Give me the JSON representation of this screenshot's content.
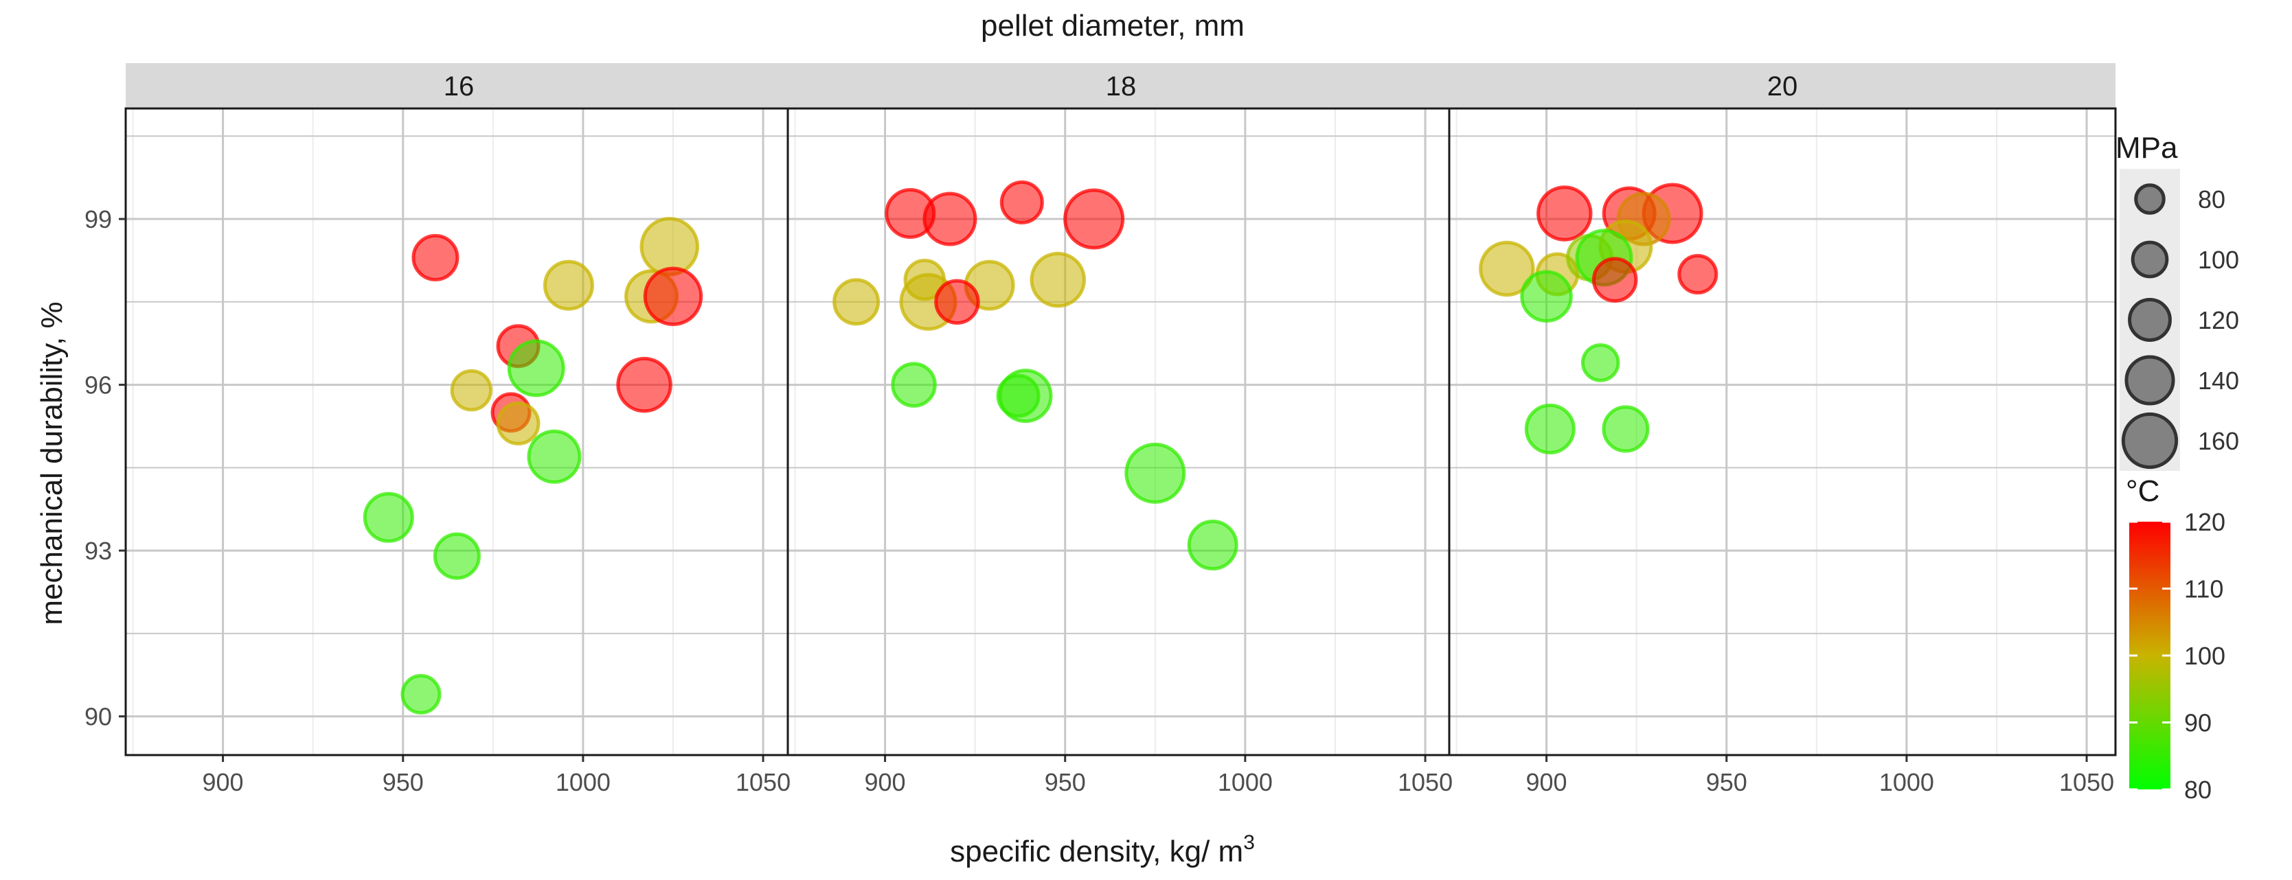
{
  "chart_data": {
    "type": "scatter",
    "facet_title": "pellet diameter, mm",
    "facets": [
      "16",
      "18",
      "20"
    ],
    "xlabel": "specific density, kg/ m",
    "xlabel_sup": "3",
    "ylabel": "mechanical durability, %",
    "xlim": [
      873,
      1058
    ],
    "ylim": [
      89.3,
      101
    ],
    "x_ticks": [
      900,
      950,
      1000,
      1050
    ],
    "y_ticks": [
      90,
      93,
      96,
      99
    ],
    "grid": true,
    "size_legend": {
      "title": "MPa",
      "values": [
        80,
        100,
        120,
        140,
        160
      ],
      "labels": [
        "80",
        "100",
        "120",
        "140",
        "160"
      ]
    },
    "color_legend": {
      "title": "°C",
      "min": 80,
      "max": 120,
      "ticks": [
        80,
        90,
        100,
        110,
        120
      ],
      "labels": [
        "80",
        "90",
        "100",
        "110",
        "120"
      ],
      "color_low": "#00ff00",
      "color_mid": "#c8b400",
      "color_high": "#ff0000"
    },
    "points": {
      "16": [
        {
          "x": 959,
          "y": 98.3,
          "p": 120,
          "t": 120
        },
        {
          "x": 1024,
          "y": 98.5,
          "p": 155,
          "t": 100
        },
        {
          "x": 996,
          "y": 97.8,
          "p": 130,
          "t": 100
        },
        {
          "x": 1019,
          "y": 97.6,
          "p": 140,
          "t": 100
        },
        {
          "x": 1025,
          "y": 97.6,
          "p": 155,
          "t": 120
        },
        {
          "x": 982,
          "y": 96.7,
          "p": 110,
          "t": 120
        },
        {
          "x": 987,
          "y": 96.3,
          "p": 150,
          "t": 85
        },
        {
          "x": 1017,
          "y": 96.0,
          "p": 145,
          "t": 120
        },
        {
          "x": 969,
          "y": 95.9,
          "p": 105,
          "t": 100
        },
        {
          "x": 980,
          "y": 95.5,
          "p": 100,
          "t": 120
        },
        {
          "x": 982,
          "y": 95.3,
          "p": 110,
          "t": 100
        },
        {
          "x": 992,
          "y": 94.7,
          "p": 140,
          "t": 85
        },
        {
          "x": 946,
          "y": 93.6,
          "p": 130,
          "t": 85
        },
        {
          "x": 965,
          "y": 92.9,
          "p": 120,
          "t": 85
        },
        {
          "x": 955,
          "y": 90.4,
          "p": 100,
          "t": 85
        }
      ],
      "18": [
        {
          "x": 907,
          "y": 99.1,
          "p": 130,
          "t": 120
        },
        {
          "x": 918,
          "y": 99.0,
          "p": 140,
          "t": 120
        },
        {
          "x": 938,
          "y": 99.3,
          "p": 110,
          "t": 120
        },
        {
          "x": 958,
          "y": 99.0,
          "p": 160,
          "t": 120
        },
        {
          "x": 948,
          "y": 97.9,
          "p": 145,
          "t": 100
        },
        {
          "x": 911,
          "y": 97.9,
          "p": 105,
          "t": 100
        },
        {
          "x": 929,
          "y": 97.8,
          "p": 130,
          "t": 100
        },
        {
          "x": 892,
          "y": 97.5,
          "p": 120,
          "t": 100
        },
        {
          "x": 912,
          "y": 97.5,
          "p": 150,
          "t": 100
        },
        {
          "x": 920,
          "y": 97.5,
          "p": 115,
          "t": 120
        },
        {
          "x": 908,
          "y": 96.0,
          "p": 115,
          "t": 85
        },
        {
          "x": 939,
          "y": 95.8,
          "p": 140,
          "t": 85
        },
        {
          "x": 937,
          "y": 95.8,
          "p": 110,
          "t": 85
        },
        {
          "x": 975,
          "y": 94.4,
          "p": 160,
          "t": 85
        },
        {
          "x": 991,
          "y": 93.1,
          "p": 130,
          "t": 85
        }
      ],
      "20": [
        {
          "x": 905,
          "y": 99.1,
          "p": 145,
          "t": 120
        },
        {
          "x": 923,
          "y": 99.1,
          "p": 140,
          "t": 120
        },
        {
          "x": 935,
          "y": 99.1,
          "p": 160,
          "t": 120
        },
        {
          "x": 927,
          "y": 99.0,
          "p": 140,
          "t": 105
        },
        {
          "x": 889,
          "y": 98.1,
          "p": 145,
          "t": 100
        },
        {
          "x": 903,
          "y": 98.0,
          "p": 110,
          "t": 100
        },
        {
          "x": 912,
          "y": 98.3,
          "p": 120,
          "t": 95
        },
        {
          "x": 922,
          "y": 98.5,
          "p": 140,
          "t": 100
        },
        {
          "x": 916,
          "y": 98.3,
          "p": 150,
          "t": 85
        },
        {
          "x": 919,
          "y": 97.9,
          "p": 115,
          "t": 120
        },
        {
          "x": 942,
          "y": 98.0,
          "p": 100,
          "t": 120
        },
        {
          "x": 900,
          "y": 97.6,
          "p": 135,
          "t": 85
        },
        {
          "x": 915,
          "y": 96.4,
          "p": 95,
          "t": 85
        },
        {
          "x": 901,
          "y": 95.2,
          "p": 130,
          "t": 85
        },
        {
          "x": 922,
          "y": 95.2,
          "p": 120,
          "t": 85
        }
      ]
    }
  }
}
